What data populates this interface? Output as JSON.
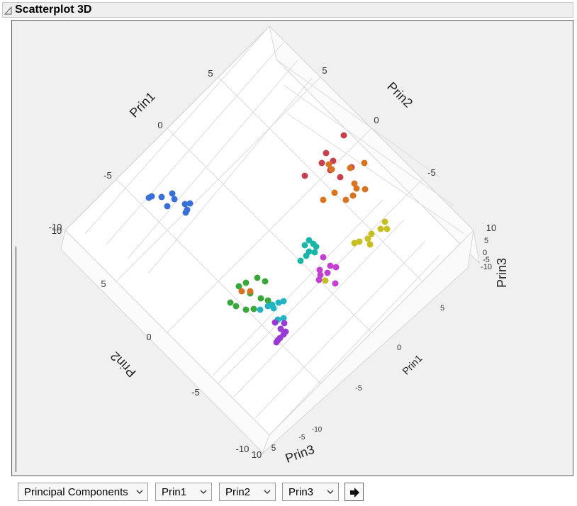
{
  "panel": {
    "title": "Scatterplot 3D"
  },
  "plot": {
    "axis_labels": {
      "prin1_top": "Prin1",
      "prin2_top": "Prin2",
      "prin3_right": "Prin3",
      "prin2_bottom": "Prin2",
      "prin1_bottom": "Prin1",
      "prin3_bottom": "Prin3"
    },
    "ticks": {
      "prin1_top": [
        "5",
        "0",
        "-5",
        "-10"
      ],
      "prin2_top": [
        "5",
        "0",
        "-5"
      ],
      "prin3_right": [
        "10",
        "5",
        "0",
        "-5",
        "-10"
      ],
      "prin2_left": [
        "10",
        "5",
        "0",
        "-5",
        "-10"
      ],
      "prin1_right": [
        "5",
        "0",
        "-5"
      ],
      "prin3_bottom": [
        "10",
        "5",
        "-5",
        "-10"
      ]
    },
    "colors": {
      "blue": "#3a6fd6",
      "red": "#c8404e",
      "orange": "#d8741f",
      "yellow": "#c8c021",
      "teal": "#1ab6a8",
      "cyan": "#22b4c2",
      "magenta": "#c23fd0",
      "purple": "#9a3ad4",
      "green": "#39a83a"
    }
  },
  "toolbar": {
    "dataset_select": "Principal Components",
    "x_select": "Prin1",
    "y_select": "Prin2",
    "z_select": "Prin3"
  }
}
